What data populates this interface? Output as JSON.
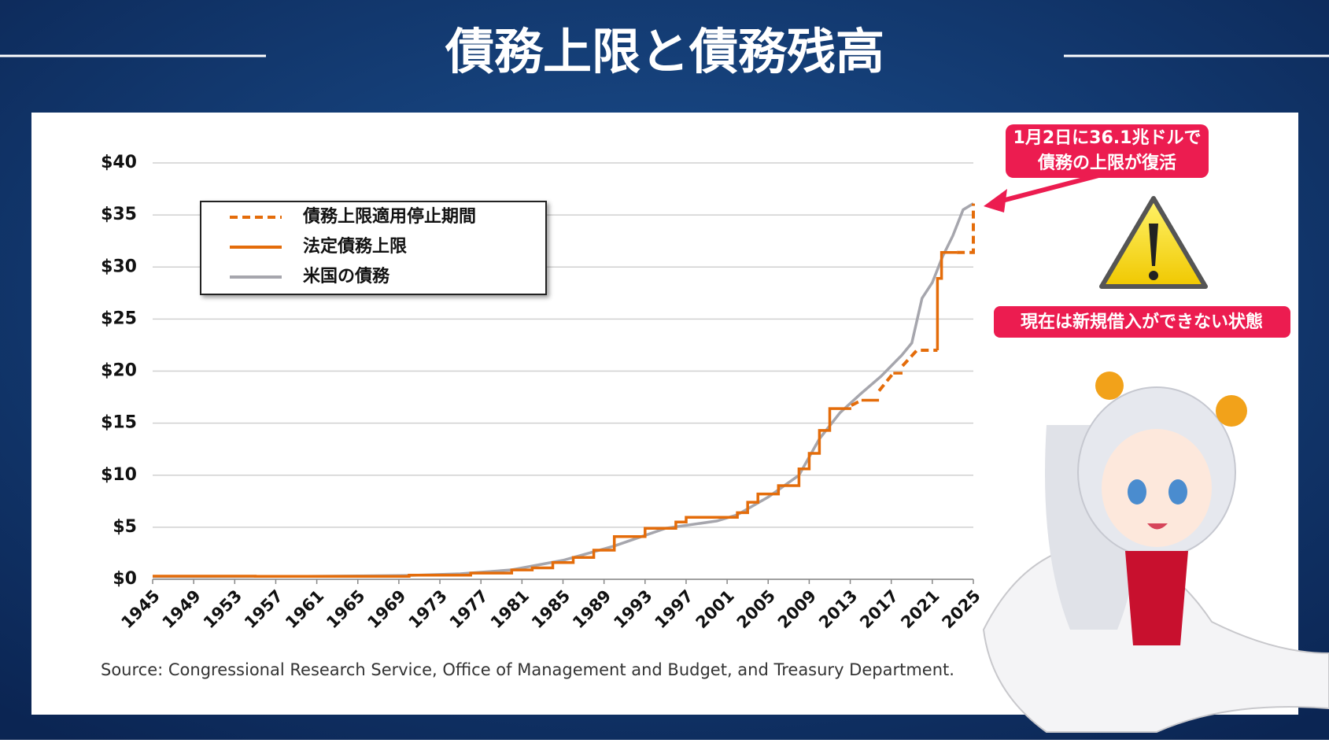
{
  "header": {
    "title": "債務上限と債務残高"
  },
  "chart_data": {
    "type": "line",
    "series": [
      {
        "name": "債務上限適用停止期間",
        "color": "#e46c0a",
        "dashed": true,
        "x": [
          2013.1,
          2014.1,
          2014.1,
          2015.8,
          2017.2,
          2017.2,
          2018.1,
          2019.5,
          2021.5,
          2021.5,
          2023.4,
          2025,
          2025
        ],
        "values": [
          16.7,
          17.2,
          null,
          18.1,
          19.8,
          null,
          20.5,
          22.0,
          22.0,
          null,
          31.4,
          31.4,
          36.1
        ]
      },
      {
        "name": "法定債務上限",
        "color": "#e46c0a",
        "dashed": false,
        "x": [
          1945,
          1955,
          1955,
          1970,
          1970,
          1976,
          1976,
          1980,
          1980,
          1982,
          1982,
          1984,
          1984,
          1986,
          1986,
          1988,
          1988,
          1990,
          1990,
          1993,
          1993,
          1996,
          1996,
          1997,
          1997,
          2002,
          2002,
          2003,
          2003,
          2004,
          2004,
          2006,
          2006,
          2008,
          2008,
          2009,
          2009,
          2010,
          2010,
          2011,
          2011,
          2013.1,
          2013.1,
          2014.1,
          2015.8,
          2015.8,
          2017.2,
          2018.1,
          2018.1,
          2021.5,
          2021.5,
          2021.9,
          2021.9,
          2023.4
        ],
        "values": [
          0.3,
          0.3,
          0.28,
          0.28,
          0.4,
          0.4,
          0.6,
          0.6,
          0.9,
          0.9,
          1.1,
          1.1,
          1.6,
          1.6,
          2.1,
          2.1,
          2.8,
          2.8,
          4.1,
          4.1,
          4.9,
          4.9,
          5.5,
          5.5,
          5.95,
          5.95,
          6.4,
          6.4,
          7.4,
          7.4,
          8.2,
          8.2,
          9.0,
          9.0,
          10.6,
          10.6,
          12.1,
          12.1,
          14.3,
          14.3,
          16.4,
          16.4,
          null,
          17.2,
          17.2,
          null,
          19.8,
          19.8,
          null,
          22.0,
          28.9,
          28.9,
          31.4,
          31.4
        ]
      },
      {
        "name": "米国の債務",
        "color": "#a6a6ad",
        "dashed": false,
        "x": [
          1945,
          1950,
          1955,
          1960,
          1965,
          1970,
          1975,
          1980,
          1985,
          1990,
          1995,
          2000,
          2002,
          2005,
          2008,
          2010,
          2012,
          2014,
          2016,
          2018,
          2019,
          2020,
          2021,
          2022,
          2023,
          2024,
          2025
        ],
        "values": [
          0.26,
          0.26,
          0.27,
          0.29,
          0.32,
          0.37,
          0.53,
          0.91,
          1.82,
          3.2,
          4.9,
          5.6,
          6.2,
          7.9,
          10.0,
          13.5,
          16.0,
          17.8,
          19.5,
          21.5,
          22.7,
          27.0,
          28.5,
          31.0,
          33.0,
          35.5,
          36.1
        ]
      }
    ],
    "xlim": [
      1945,
      2025
    ],
    "xticks": [
      1945,
      1949,
      1953,
      1957,
      1961,
      1965,
      1969,
      1973,
      1977,
      1981,
      1985,
      1989,
      1993,
      1997,
      2001,
      2005,
      2009,
      2013,
      2017,
      2021,
      2025
    ],
    "ylim": [
      0,
      40
    ],
    "yticks": [
      {
        "value": 0,
        "label": "$0"
      },
      {
        "value": 5,
        "label": "$5"
      },
      {
        "value": 10,
        "label": "$10"
      },
      {
        "value": 15,
        "label": "$15"
      },
      {
        "value": 20,
        "label": "$20"
      },
      {
        "value": 25,
        "label": "$25"
      },
      {
        "value": 30,
        "label": "$30"
      },
      {
        "value": 35,
        "label": "$35"
      },
      {
        "value": 40,
        "label": "$40"
      }
    ],
    "grid": true,
    "source": "Source: Congressional Research Service, Office of Management and Budget, and Treasury Department.",
    "annotations": [
      "1月2日に36.1兆ドルで",
      "債務の上限が復活",
      "現在は新規借入ができない状態"
    ]
  }
}
